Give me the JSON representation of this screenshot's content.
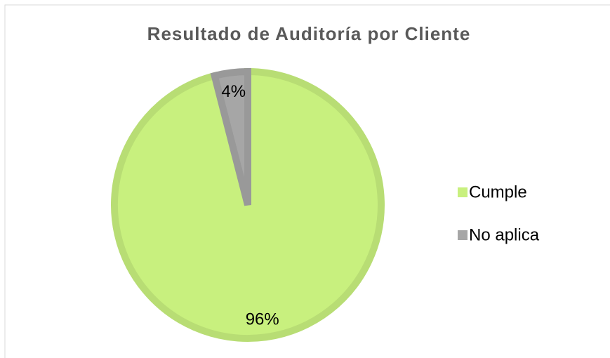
{
  "chart_data": {
    "type": "pie",
    "title": "Resultado de Auditoría por Cliente",
    "categories": [
      "Cumple",
      "No aplica"
    ],
    "values": [
      96,
      4
    ],
    "value_labels": [
      "96%",
      "4%"
    ],
    "colors": [
      "#c8f07e",
      "#a6a6a6"
    ],
    "legend": "right"
  }
}
